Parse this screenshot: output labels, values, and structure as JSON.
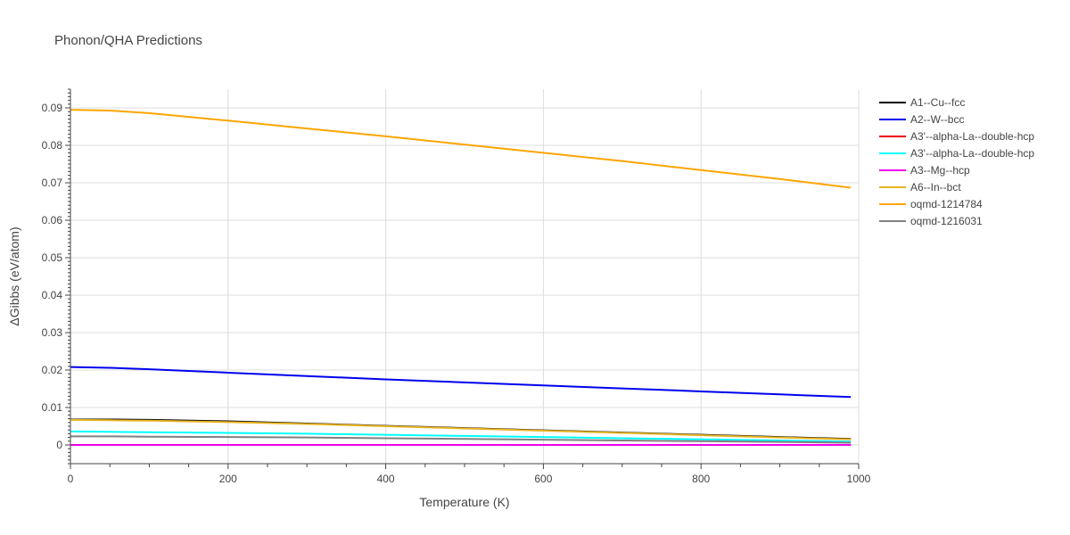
{
  "chart_data": {
    "type": "line",
    "title": "Phonon/QHA Predictions",
    "xlabel": "Temperature (K)",
    "ylabel": "ΔGibbs (eV/atom)",
    "xlim": [
      0,
      1000
    ],
    "ylim": [
      -0.005,
      0.095
    ],
    "xticks": [
      0,
      200,
      400,
      600,
      800,
      1000
    ],
    "xtick_labels": [
      "0",
      "200",
      "400",
      "600",
      "800",
      "1000"
    ],
    "yticks": [
      0,
      0.01,
      0.02,
      0.03,
      0.04,
      0.05,
      0.06,
      0.07,
      0.08,
      0.09
    ],
    "ytick_labels": [
      "0",
      "0.01",
      "0.02",
      "0.03",
      "0.04",
      "0.05",
      "0.06",
      "0.07",
      "0.08",
      "0.09"
    ],
    "grid": true,
    "legend_position": "top-right",
    "series": [
      {
        "name": "A1--Cu--fcc",
        "color": "#000000",
        "x": [
          0,
          50,
          100,
          200,
          300,
          400,
          500,
          600,
          700,
          800,
          900,
          990
        ],
        "y": [
          0.0068,
          0.0068,
          0.0067,
          0.0063,
          0.0057,
          0.0051,
          0.0045,
          0.0039,
          0.0033,
          0.0027,
          0.0021,
          0.0016
        ]
      },
      {
        "name": "A2--W--bcc",
        "color": "#0000ee",
        "x": [
          0,
          50,
          100,
          200,
          300,
          400,
          500,
          600,
          700,
          800,
          900,
          990
        ],
        "y": [
          0.0208,
          0.0206,
          0.0202,
          0.0193,
          0.0184,
          0.0175,
          0.0167,
          0.0159,
          0.0151,
          0.0143,
          0.0135,
          0.0128
        ]
      },
      {
        "name": "A3'--alpha-La--double-hcp",
        "color": "#ee0000",
        "x": [
          0,
          200,
          400,
          600,
          800,
          990
        ],
        "y": [
          0.0,
          0.0,
          0.0,
          0.0,
          0.0,
          0.0
        ]
      },
      {
        "name": "A3'--alpha-La--double-hcp",
        "color": "#00ffff",
        "x": [
          0,
          50,
          100,
          200,
          300,
          400,
          500,
          600,
          700,
          800,
          900,
          990
        ],
        "y": [
          0.0036,
          0.0035,
          0.0034,
          0.0032,
          0.003,
          0.0027,
          0.0024,
          0.0021,
          0.0018,
          0.0015,
          0.0012,
          0.0009
        ]
      },
      {
        "name": "A3--Mg--hcp",
        "color": "#ee00ee",
        "x": [
          0,
          200,
          400,
          600,
          800,
          990
        ],
        "y": [
          0.0,
          0.0,
          0.0,
          0.0,
          0.0,
          0.0
        ]
      },
      {
        "name": "A6--In--bct",
        "color": "#e6b422",
        "x": [
          0,
          50,
          100,
          200,
          300,
          400,
          500,
          600,
          700,
          800,
          900,
          990
        ],
        "y": [
          0.0067,
          0.0066,
          0.0065,
          0.0061,
          0.0056,
          0.005,
          0.0044,
          0.0038,
          0.0032,
          0.0026,
          0.002,
          0.0015
        ]
      },
      {
        "name": "oqmd-1214784",
        "color": "#ffa500",
        "x": [
          0,
          50,
          100,
          200,
          300,
          400,
          500,
          600,
          700,
          800,
          900,
          990
        ],
        "y": [
          0.0895,
          0.0893,
          0.0886,
          0.0866,
          0.0845,
          0.0824,
          0.0802,
          0.078,
          0.0758,
          0.0734,
          0.071,
          0.0687
        ]
      },
      {
        "name": "oqmd-1216031",
        "color": "#808080",
        "x": [
          0,
          50,
          100,
          200,
          300,
          400,
          500,
          600,
          700,
          800,
          900,
          990
        ],
        "y": [
          0.0023,
          0.0023,
          0.0022,
          0.0021,
          0.002,
          0.0018,
          0.0016,
          0.0014,
          0.0012,
          0.001,
          0.0008,
          0.0006
        ]
      }
    ]
  }
}
